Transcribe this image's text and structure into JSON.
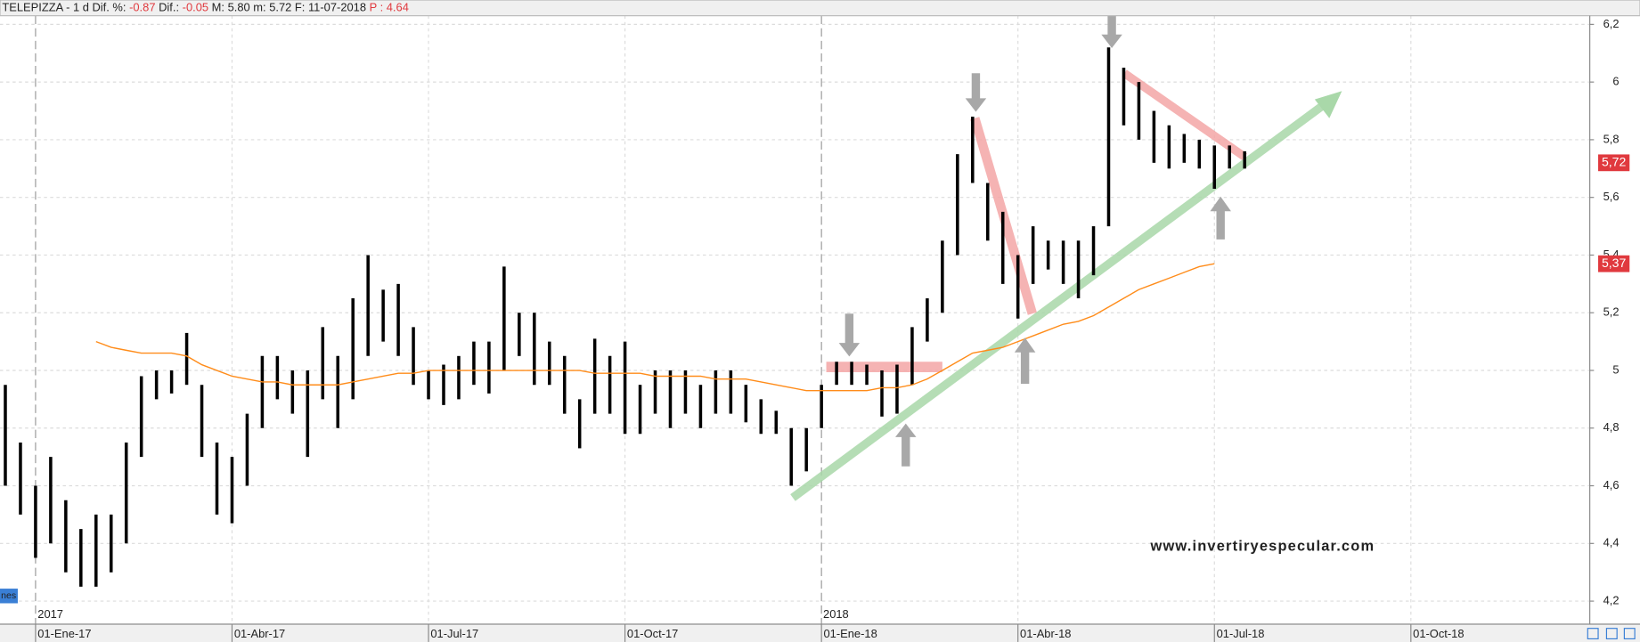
{
  "chart_data": {
    "type": "range-bar",
    "header": [
      "TELEPIZZA -  1 d  Dif. %:",
      "-0.87",
      "Dif.:",
      "-0.05",
      "M: 5.80  m: 5.72  F: 11-07-2018",
      "P : 4.64"
    ],
    "watermark": "www.invertiryespecular.com",
    "year_labels": [
      "2017",
      "2018"
    ],
    "corner_label": "nes",
    "categories": [
      null,
      null,
      "01-Ene-17",
      null,
      null,
      null,
      null,
      null,
      null,
      null,
      null,
      null,
      null,
      null,
      null,
      "01-Abr-17",
      null,
      null,
      null,
      null,
      null,
      null,
      null,
      null,
      null,
      null,
      null,
      null,
      "01-Jul-17",
      null,
      null,
      null,
      null,
      null,
      null,
      null,
      null,
      null,
      null,
      null,
      null,
      "01-Oct-17",
      null,
      null,
      null,
      null,
      null,
      null,
      null,
      null,
      null,
      null,
      null,
      null,
      "01-Ene-18",
      null,
      null,
      null,
      null,
      null,
      null,
      null,
      null,
      null,
      null,
      null,
      null,
      "01-Abr-18",
      null,
      null,
      null,
      null,
      null,
      null,
      null,
      null,
      null,
      null,
      null,
      null,
      "01-Jul-18",
      null,
      null,
      null,
      null,
      null,
      null,
      null,
      null,
      null,
      null,
      null,
      null,
      "01-Oct-18",
      null,
      null,
      null,
      null,
      null,
      null,
      null,
      null,
      null,
      null
    ],
    "high": [
      4.95,
      4.75,
      4.6,
      4.7,
      4.55,
      4.45,
      4.5,
      4.5,
      4.75,
      4.98,
      5.0,
      5.0,
      5.13,
      4.95,
      4.75,
      4.7,
      4.85,
      5.05,
      5.05,
      5.0,
      5.0,
      5.15,
      5.05,
      5.25,
      5.4,
      5.28,
      5.3,
      5.15,
      5.0,
      5.02,
      5.05,
      5.1,
      5.1,
      5.36,
      5.2,
      5.2,
      5.1,
      5.05,
      4.9,
      5.11,
      5.05,
      5.1,
      4.95,
      5.0,
      5.0,
      5.0,
      4.95,
      5.0,
      5.0,
      4.95,
      4.9,
      4.86,
      4.8,
      4.8,
      4.95,
      5.03,
      5.03,
      5.02,
      5.0,
      5.02,
      5.15,
      5.25,
      5.45,
      5.75,
      5.88,
      5.65,
      5.55,
      5.4,
      5.5,
      5.45,
      5.45,
      5.45,
      5.5,
      6.12,
      6.05,
      6.0,
      5.9,
      5.85,
      5.82,
      5.8,
      5.78,
      5.78,
      5.76,
      null,
      null,
      null,
      null,
      null,
      null,
      null,
      null,
      null,
      null,
      null,
      null,
      null,
      null,
      null,
      null,
      null,
      null,
      null,
      null,
      null
    ],
    "low": [
      4.6,
      4.5,
      4.35,
      4.4,
      4.3,
      4.25,
      4.25,
      4.3,
      4.4,
      4.7,
      4.9,
      4.92,
      4.95,
      4.7,
      4.5,
      4.47,
      4.6,
      4.8,
      4.9,
      4.85,
      4.7,
      4.9,
      4.8,
      4.9,
      5.05,
      5.1,
      5.05,
      4.95,
      4.9,
      4.88,
      4.9,
      4.95,
      4.92,
      5.0,
      5.05,
      4.95,
      4.95,
      4.85,
      4.73,
      4.85,
      4.85,
      4.78,
      4.78,
      4.85,
      4.8,
      4.85,
      4.8,
      4.85,
      4.85,
      4.82,
      4.78,
      4.78,
      4.6,
      4.65,
      4.8,
      4.95,
      4.95,
      4.95,
      4.84,
      4.85,
      4.95,
      5.1,
      5.2,
      5.4,
      5.65,
      5.45,
      5.3,
      5.18,
      5.3,
      5.35,
      5.3,
      5.25,
      5.33,
      5.5,
      5.85,
      5.8,
      5.72,
      5.7,
      5.72,
      5.7,
      5.63,
      5.7,
      5.7,
      null,
      null,
      null,
      null,
      null,
      null,
      null,
      null,
      null,
      null,
      null,
      null,
      null,
      null,
      null,
      null,
      null,
      null,
      null,
      null,
      null
    ],
    "ma": [
      null,
      null,
      null,
      null,
      null,
      null,
      5.1,
      5.08,
      5.07,
      5.06,
      5.06,
      5.06,
      5.05,
      5.02,
      5.0,
      4.98,
      4.97,
      4.96,
      4.96,
      4.95,
      4.95,
      4.95,
      4.95,
      4.96,
      4.97,
      4.98,
      4.99,
      4.99,
      5.0,
      5.0,
      5.0,
      5.0,
      5.0,
      5.0,
      5.0,
      5.0,
      5.0,
      5.0,
      5.0,
      4.99,
      4.99,
      4.99,
      4.99,
      4.98,
      4.98,
      4.98,
      4.98,
      4.97,
      4.97,
      4.97,
      4.96,
      4.95,
      4.94,
      4.93,
      4.93,
      4.93,
      4.93,
      4.93,
      4.94,
      4.94,
      4.95,
      4.97,
      5.0,
      5.03,
      5.06,
      5.07,
      5.08,
      5.1,
      5.12,
      5.14,
      5.16,
      5.17,
      5.19,
      5.22,
      5.25,
      5.28,
      5.3,
      5.32,
      5.34,
      5.36,
      5.37,
      null,
      null,
      null,
      null,
      null,
      null,
      null,
      null,
      null,
      null,
      null,
      null,
      null,
      null,
      null,
      null,
      null,
      null,
      null,
      null,
      null,
      null,
      null
    ],
    "bar_color": "#000000",
    "ma_color": "#ff8c1a",
    "ylim": [
      4.12,
      6.23
    ],
    "yticks": [
      {
        "value": 4.2,
        "label": "4,2"
      },
      {
        "value": 4.4,
        "label": "4,4"
      },
      {
        "value": 4.6,
        "label": "4,6"
      },
      {
        "value": 4.8,
        "label": "4,8"
      },
      5,
      {
        "value": 5.2,
        "label": "5,2"
      },
      {
        "value": 5.4,
        "label": "5,4"
      },
      {
        "value": 5.6,
        "label": "5,6"
      },
      {
        "value": 5.8,
        "label": "5,8"
      },
      6,
      {
        "value": 6.2,
        "label": "6,2"
      }
    ],
    "price_labels": [
      {
        "value": 5.72,
        "label": "5,72"
      },
      {
        "value": 5.37,
        "label": "5,37"
      }
    ],
    "price_label_color": "#e0393e",
    "grid": true
  }
}
